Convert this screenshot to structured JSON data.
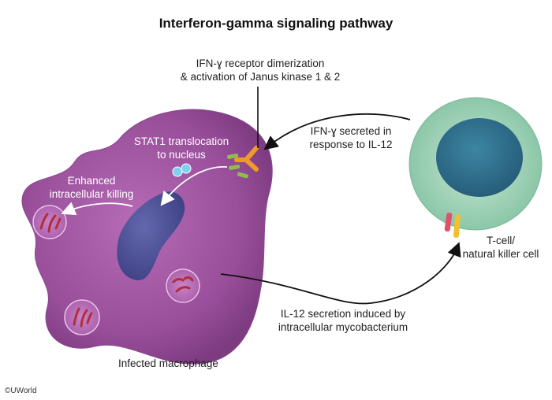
{
  "title": "Interferon-gamma signaling pathway",
  "labels": {
    "receptor_line1": "IFN-ɣ receptor dimerization",
    "receptor_line2": "& activation of Janus kinase 1 & 2",
    "secreted_line1": "IFN-ɣ secreted in",
    "secreted_line2": "response to IL-12",
    "stat1_line1": "STAT1 translocation",
    "stat1_line2": "to nucleus",
    "killing_line1": "Enhanced",
    "killing_line2": "intracellular killing",
    "tcell_line1": "T-cell/",
    "tcell_line2": "natural killer cell",
    "il12_line1": "IL-12 secretion induced by",
    "il12_line2": "intracellular mycobacterium",
    "macrophage": "Infected macrophage"
  },
  "copyright": "©UWorld",
  "colors": {
    "macrophage": "#9b4f9c",
    "nucleus": "#4b4f93",
    "tcell_outer": "#9fd3b5",
    "tcell_nucleus": "#2f6f8c",
    "receptor": "#f09a2a",
    "receptor_green": "#8cbf4a",
    "stat1": "#7fd0f0",
    "bacteria": "#b0303a"
  }
}
